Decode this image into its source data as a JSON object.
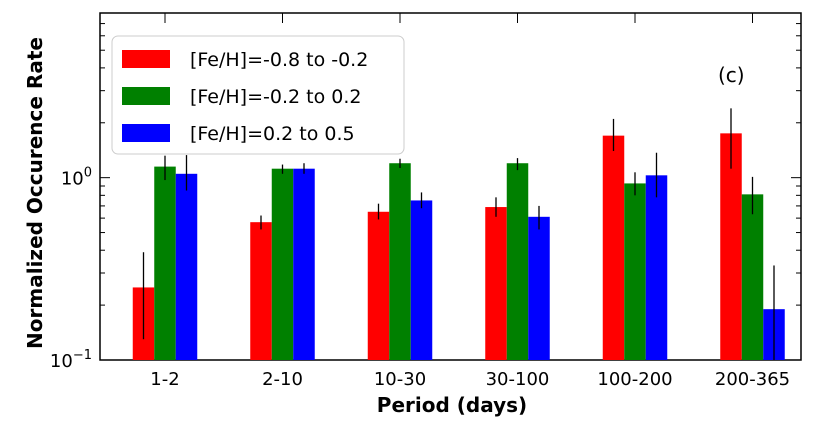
{
  "chart_data": {
    "type": "bar",
    "yscale": "log",
    "ylim": [
      0.1,
      8
    ],
    "title": "",
    "panel_label": "(c)",
    "xlabel": "Period (days)",
    "ylabel": "Normalized Occurence Rate",
    "categories": [
      "1-2",
      "2-10",
      "10-30",
      "30-100",
      "100-200",
      "200-365"
    ],
    "y_ticks": [
      {
        "value": 0.1,
        "base": "10",
        "exp": "−1"
      },
      {
        "value": 1,
        "base": "10",
        "exp": "0"
      }
    ],
    "legend_position": "top-left",
    "series": [
      {
        "name": "[Fe/H]=-0.8 to -0.2",
        "color": "#ff0000",
        "values": [
          0.25,
          0.57,
          0.65,
          0.69,
          1.7,
          1.75
        ],
        "err_low": [
          0.13,
          0.52,
          0.59,
          0.61,
          1.4,
          1.12
        ],
        "err_high": [
          0.39,
          0.62,
          0.72,
          0.78,
          2.1,
          2.4
        ]
      },
      {
        "name": "[Fe/H]=-0.2 to 0.2",
        "color": "#008000",
        "values": [
          1.15,
          1.12,
          1.2,
          1.2,
          0.93,
          0.81
        ],
        "err_low": [
          0.97,
          1.05,
          1.13,
          1.1,
          0.8,
          0.63
        ],
        "err_high": [
          1.32,
          1.18,
          1.27,
          1.28,
          1.07,
          1.01
        ]
      },
      {
        "name": "[Fe/H]=0.2 to 0.5",
        "color": "#0000ff",
        "values": [
          1.05,
          1.12,
          0.75,
          0.61,
          1.03,
          0.19
        ],
        "err_low": [
          0.85,
          1.05,
          0.68,
          0.52,
          0.78,
          0.1
        ],
        "err_high": [
          1.33,
          1.2,
          0.83,
          0.7,
          1.37,
          0.33
        ]
      }
    ]
  }
}
